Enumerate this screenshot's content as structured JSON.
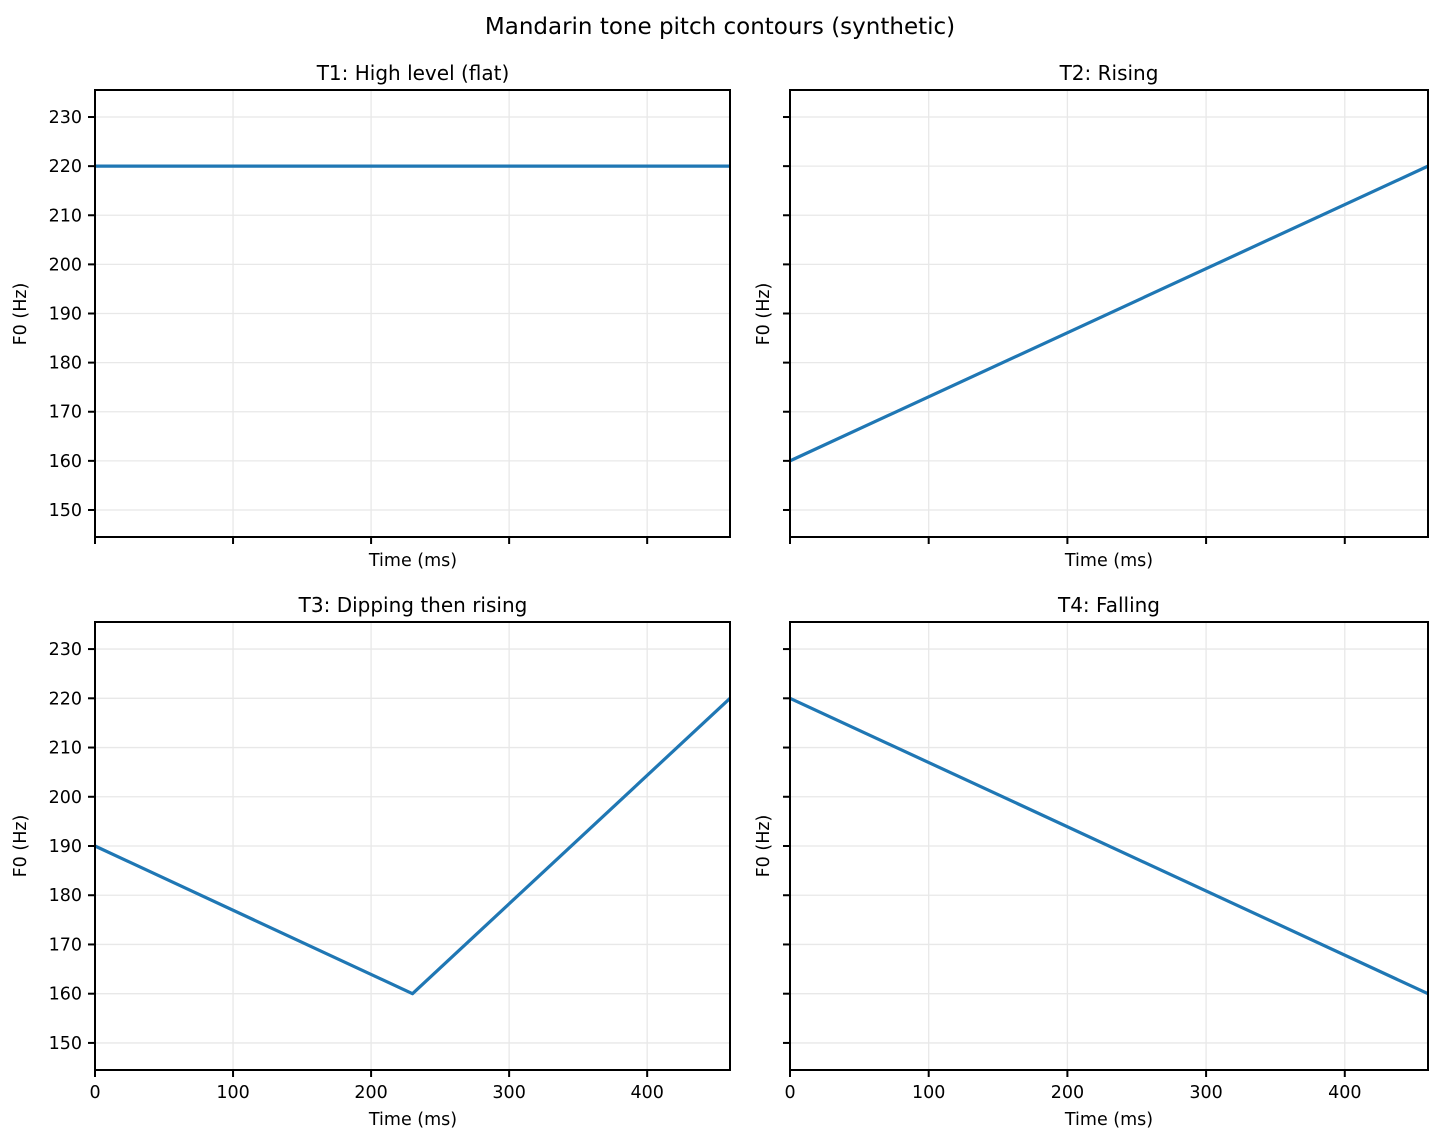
{
  "figure": {
    "suptitle": "Mandarin tone pitch contours (synthetic)"
  },
  "style": {
    "line_color": "#1f77b4",
    "grid_color": "#e8e8e8",
    "axis_color": "#000000",
    "background": "#ffffff"
  },
  "chart_data": [
    {
      "type": "line",
      "title": "T1: High level (flat)",
      "xlabel": "Time (ms)",
      "ylabel": "F0 (Hz)",
      "x": [
        0,
        460
      ],
      "y": [
        220,
        220
      ],
      "xlim": [
        0,
        460
      ],
      "ylim": [
        144.5,
        235.5
      ],
      "xticks": [
        0,
        100,
        200,
        300,
        400
      ],
      "yticks": [
        150,
        160,
        170,
        180,
        190,
        200,
        210,
        220,
        230
      ],
      "xticklabels_visible": false,
      "yticklabels_visible": true,
      "grid": true,
      "legend": "none"
    },
    {
      "type": "line",
      "title": "T2: Rising",
      "xlabel": "Time (ms)",
      "ylabel": "F0 (Hz)",
      "x": [
        0,
        460
      ],
      "y": [
        160,
        220
      ],
      "xlim": [
        0,
        460
      ],
      "ylim": [
        144.5,
        235.5
      ],
      "xticks": [
        0,
        100,
        200,
        300,
        400
      ],
      "yticks": [
        150,
        160,
        170,
        180,
        190,
        200,
        210,
        220,
        230
      ],
      "xticklabels_visible": false,
      "yticklabels_visible": false,
      "grid": true,
      "legend": "none"
    },
    {
      "type": "line",
      "title": "T3: Dipping then rising",
      "xlabel": "Time (ms)",
      "ylabel": "F0 (Hz)",
      "x": [
        0,
        230,
        460
      ],
      "y": [
        190,
        160,
        220
      ],
      "xlim": [
        0,
        460
      ],
      "ylim": [
        144.5,
        235.5
      ],
      "xticks": [
        0,
        100,
        200,
        300,
        400
      ],
      "yticks": [
        150,
        160,
        170,
        180,
        190,
        200,
        210,
        220,
        230
      ],
      "xticklabels_visible": true,
      "yticklabels_visible": true,
      "grid": true,
      "legend": "none"
    },
    {
      "type": "line",
      "title": "T4: Falling",
      "xlabel": "Time (ms)",
      "ylabel": "F0 (Hz)",
      "x": [
        0,
        460
      ],
      "y": [
        220,
        160
      ],
      "xlim": [
        0,
        460
      ],
      "ylim": [
        144.5,
        235.5
      ],
      "xticks": [
        0,
        100,
        200,
        300,
        400
      ],
      "yticks": [
        150,
        160,
        170,
        180,
        190,
        200,
        210,
        220,
        230
      ],
      "xticklabels_visible": true,
      "yticklabels_visible": false,
      "grid": true,
      "legend": "none"
    }
  ]
}
